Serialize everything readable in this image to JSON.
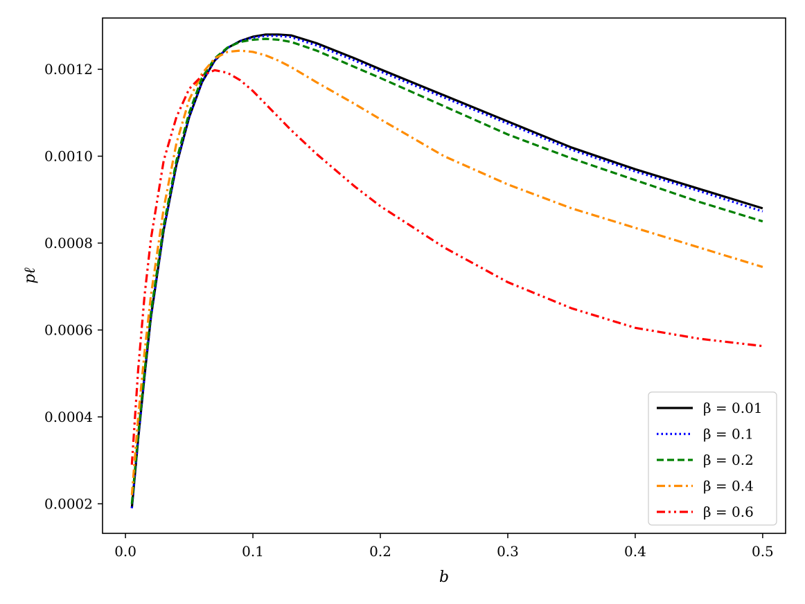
{
  "chart_data": {
    "type": "line",
    "title": "",
    "xlabel": "b",
    "ylabel": "pℓ",
    "xlim": [
      -0.018,
      0.518
    ],
    "ylim": [
      0.000132,
      0.001318
    ],
    "xticks": [
      0.0,
      0.1,
      0.2,
      0.3,
      0.4,
      0.5
    ],
    "xtick_labels": [
      "0.0",
      "0.1",
      "0.2",
      "0.3",
      "0.4",
      "0.5"
    ],
    "yticks": [
      0.0002,
      0.0004,
      0.0006,
      0.0008,
      0.001,
      0.0012
    ],
    "ytick_labels": [
      "0.0002",
      "0.0004",
      "0.0006",
      "0.0008",
      "0.0010",
      "0.0012"
    ],
    "grid": false,
    "legend_position": "bottom-right",
    "series": [
      {
        "name": "β = 0.01",
        "color": "#000000",
        "style": "solid",
        "x": [
          0.005,
          0.01,
          0.015,
          0.02,
          0.03,
          0.04,
          0.05,
          0.06,
          0.07,
          0.08,
          0.09,
          0.1,
          0.11,
          0.12,
          0.13,
          0.15,
          0.18,
          0.2,
          0.25,
          0.3,
          0.35,
          0.4,
          0.45,
          0.5
        ],
        "y": [
          0.00019,
          0.00035,
          0.000495,
          0.00063,
          0.00083,
          0.00098,
          0.00109,
          0.00117,
          0.00122,
          0.001249,
          0.001265,
          0.001275,
          0.00128,
          0.00128,
          0.001278,
          0.00126,
          0.001225,
          0.0012,
          0.00114,
          0.00108,
          0.00102,
          0.00097,
          0.000925,
          0.00088
        ]
      },
      {
        "name": "β = 0.1",
        "color": "#0000ff",
        "style": "dotted",
        "x": [
          0.005,
          0.01,
          0.015,
          0.02,
          0.03,
          0.04,
          0.05,
          0.06,
          0.07,
          0.08,
          0.09,
          0.1,
          0.11,
          0.12,
          0.13,
          0.15,
          0.18,
          0.2,
          0.25,
          0.3,
          0.35,
          0.4,
          0.45,
          0.5
        ],
        "y": [
          0.00019,
          0.00035,
          0.000495,
          0.00063,
          0.00083,
          0.00098,
          0.00109,
          0.00117,
          0.00122,
          0.001249,
          0.001265,
          0.001273,
          0.001277,
          0.001277,
          0.001274,
          0.001255,
          0.00122,
          0.001195,
          0.001135,
          0.001075,
          0.001015,
          0.000965,
          0.00092,
          0.000873
        ]
      },
      {
        "name": "β = 0.2",
        "color": "#008000",
        "style": "dashed",
        "x": [
          0.005,
          0.01,
          0.015,
          0.02,
          0.03,
          0.04,
          0.05,
          0.06,
          0.07,
          0.08,
          0.09,
          0.1,
          0.11,
          0.12,
          0.13,
          0.15,
          0.18,
          0.2,
          0.25,
          0.3,
          0.35,
          0.4,
          0.45,
          0.5
        ],
        "y": [
          0.0002,
          0.00036,
          0.000505,
          0.00064,
          0.00084,
          0.00099,
          0.0011,
          0.00118,
          0.001225,
          0.00125,
          0.001263,
          0.001268,
          0.00127,
          0.001268,
          0.001263,
          0.001243,
          0.001205,
          0.00118,
          0.001115,
          0.00105,
          0.000995,
          0.000945,
          0.000895,
          0.00085
        ]
      },
      {
        "name": "β = 0.4",
        "color": "#ff8c00",
        "style": "dashdot",
        "x": [
          0.005,
          0.01,
          0.015,
          0.02,
          0.03,
          0.04,
          0.05,
          0.06,
          0.07,
          0.08,
          0.09,
          0.1,
          0.11,
          0.12,
          0.13,
          0.15,
          0.18,
          0.2,
          0.25,
          0.3,
          0.35,
          0.4,
          0.45,
          0.5
        ],
        "y": [
          0.00022,
          0.0004,
          0.00055,
          0.00068,
          0.00088,
          0.00103,
          0.00113,
          0.00119,
          0.001225,
          0.00124,
          0.001243,
          0.00124,
          0.001232,
          0.00122,
          0.001205,
          0.00117,
          0.00112,
          0.001085,
          0.001,
          0.000935,
          0.00088,
          0.000835,
          0.00079,
          0.000745
        ]
      },
      {
        "name": "β = 0.6",
        "color": "#ff0000",
        "style": "dashdotdot",
        "x": [
          0.005,
          0.01,
          0.015,
          0.02,
          0.03,
          0.04,
          0.05,
          0.06,
          0.07,
          0.08,
          0.09,
          0.1,
          0.11,
          0.12,
          0.13,
          0.15,
          0.18,
          0.2,
          0.25,
          0.3,
          0.35,
          0.4,
          0.45,
          0.5
        ],
        "y": [
          0.00029,
          0.00051,
          0.00068,
          0.00081,
          0.00099,
          0.00109,
          0.001155,
          0.001185,
          0.001198,
          0.001192,
          0.001175,
          0.00115,
          0.00112,
          0.00109,
          0.00106,
          0.001005,
          0.00093,
          0.000885,
          0.00079,
          0.00071,
          0.00065,
          0.000605,
          0.00058,
          0.000563
        ]
      }
    ]
  }
}
